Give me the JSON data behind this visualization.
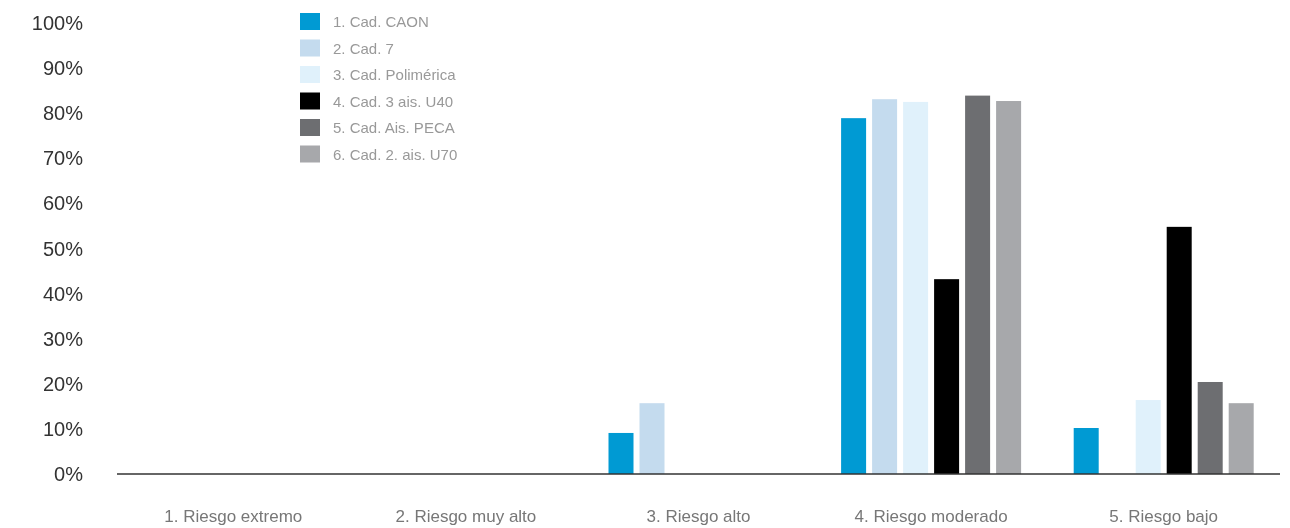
{
  "chart_data": {
    "type": "bar",
    "categories": [
      "1. Riesgo extremo",
      "2. Riesgo muy alto",
      "3. Riesgo alto",
      "4. Riesgo moderado",
      "5. Riesgo bajo"
    ],
    "series": [
      {
        "name": "1. Cad. CAON",
        "color": "#009ad3",
        "values": [
          0,
          0,
          9.1,
          78.9,
          10.2
        ]
      },
      {
        "name": "2. Cad. 7",
        "color": "#c4dbee",
        "values": [
          0,
          0,
          15.7,
          83.1,
          0
        ]
      },
      {
        "name": "3. Cad. Polimérica",
        "color": "#e0f1fb",
        "values": [
          0,
          0,
          0,
          82.5,
          16.4
        ]
      },
      {
        "name": "4. Cad. 3 ais. U40",
        "color": "#000000",
        "values": [
          0,
          0,
          0,
          43.2,
          54.8
        ]
      },
      {
        "name": "5. Cad. Ais. PECA",
        "color": "#6d6e71",
        "values": [
          0,
          0,
          0,
          83.9,
          20.4
        ]
      },
      {
        "name": "6. Cad. 2. ais. U70",
        "color": "#a7a8ab",
        "values": [
          0,
          0,
          0,
          82.7,
          15.7
        ]
      }
    ],
    "ylim": [
      0,
      100
    ],
    "yticks": [
      {
        "value": 0,
        "label": "0%"
      },
      {
        "value": 10,
        "label": "10%"
      },
      {
        "value": 20,
        "label": "20%"
      },
      {
        "value": 30,
        "label": "30%"
      },
      {
        "value": 40,
        "label": "40%"
      },
      {
        "value": 50,
        "label": "50%"
      },
      {
        "value": 60,
        "label": "60%"
      },
      {
        "value": 70,
        "label": "70%"
      },
      {
        "value": 80,
        "label": "80%"
      },
      {
        "value": 90,
        "label": "90%"
      },
      {
        "value": 100,
        "label": "100%"
      }
    ],
    "grid": false,
    "legend": "top left"
  }
}
